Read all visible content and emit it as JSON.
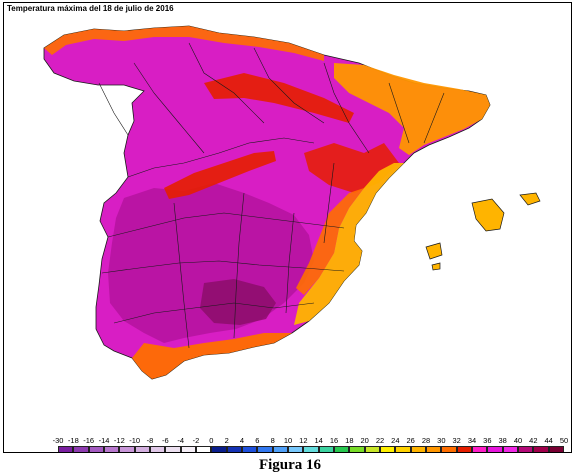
{
  "map": {
    "title": "Temperatura máxima del 18 de julio de 2016"
  },
  "legend": {
    "labels": [
      "-30",
      "-18",
      "-16",
      "-14",
      "-12",
      "-10",
      "-8",
      "-6",
      "-4",
      "-2",
      "0",
      "2",
      "4",
      "6",
      "8",
      "10",
      "12",
      "14",
      "16",
      "18",
      "20",
      "22",
      "24",
      "26",
      "28",
      "30",
      "32",
      "34",
      "36",
      "38",
      "40",
      "42",
      "44",
      "50"
    ],
    "colors": [
      "#7a1fa0",
      "#8e3cb0",
      "#a35ac0",
      "#b878ce",
      "#c896d8",
      "#d4b0e0",
      "#e0c8e8",
      "#ece0f0",
      "#f6f0f8",
      "#ffffff",
      "#0a1e8c",
      "#1432b4",
      "#1e50dc",
      "#3278f0",
      "#50a0f8",
      "#78c8fc",
      "#64dcdc",
      "#3cd2a0",
      "#28c850",
      "#78dc28",
      "#c8e628",
      "#fff000",
      "#ffd200",
      "#ffb400",
      "#ff9600",
      "#ff6e00",
      "#e61e00",
      "#ff1ec8",
      "#e614dc",
      "#f028e6",
      "#b40a78",
      "#a0004b",
      "#780032"
    ],
    "label_color": "#000000"
  },
  "figure": {
    "caption": "Figura 16"
  }
}
